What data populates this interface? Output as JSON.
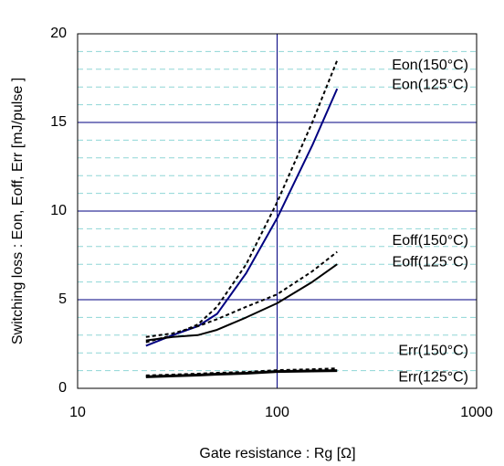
{
  "chart_data": {
    "type": "line",
    "xlabel": "Gate resistance : Rg [Ω]",
    "ylabel": "Switching loss  : Eon, Eoff, Err  [mJ/pulse ]",
    "xscale": "log",
    "xlim": [
      10,
      1000
    ],
    "xticks": [
      10,
      100,
      1000
    ],
    "ylim": [
      0,
      20
    ],
    "yticks": [
      0,
      5,
      10,
      15,
      20
    ],
    "y_minor_ticks": [
      1,
      2,
      3,
      4,
      6,
      7,
      8,
      9,
      11,
      12,
      13,
      14,
      16,
      17,
      18,
      19
    ],
    "x": [
      22,
      30,
      40,
      50,
      70,
      100,
      150,
      200
    ],
    "series": [
      {
        "name": "Eon(150°C)",
        "color": "#000000",
        "dash": true,
        "values": [
          2.6,
          3.0,
          3.6,
          4.6,
          7.0,
          10.5,
          15.0,
          18.5
        ]
      },
      {
        "name": "Eon(125°C)",
        "color": "#000080",
        "dash": false,
        "values": [
          2.4,
          3.0,
          3.5,
          4.2,
          6.5,
          9.6,
          13.7,
          16.9
        ]
      },
      {
        "name": "Eoff(150°C)",
        "color": "#000000",
        "dash": true,
        "values": [
          2.9,
          3.1,
          3.5,
          3.9,
          4.6,
          5.3,
          6.6,
          7.7
        ]
      },
      {
        "name": "Eoff(125°C)",
        "color": "#000000",
        "dash": false,
        "values": [
          2.7,
          2.9,
          3.0,
          3.3,
          4.0,
          4.8,
          6.0,
          7.0
        ]
      },
      {
        "name": "Err(150°C)",
        "color": "#000000",
        "dash": true,
        "values": [
          0.7,
          0.75,
          0.8,
          0.85,
          0.9,
          1.0,
          1.05,
          1.1
        ]
      },
      {
        "name": "Err(125°C)",
        "color": "#000000",
        "dash": false,
        "values": [
          0.65,
          0.7,
          0.75,
          0.8,
          0.85,
          0.95,
          0.98,
          1.0
        ]
      }
    ]
  }
}
